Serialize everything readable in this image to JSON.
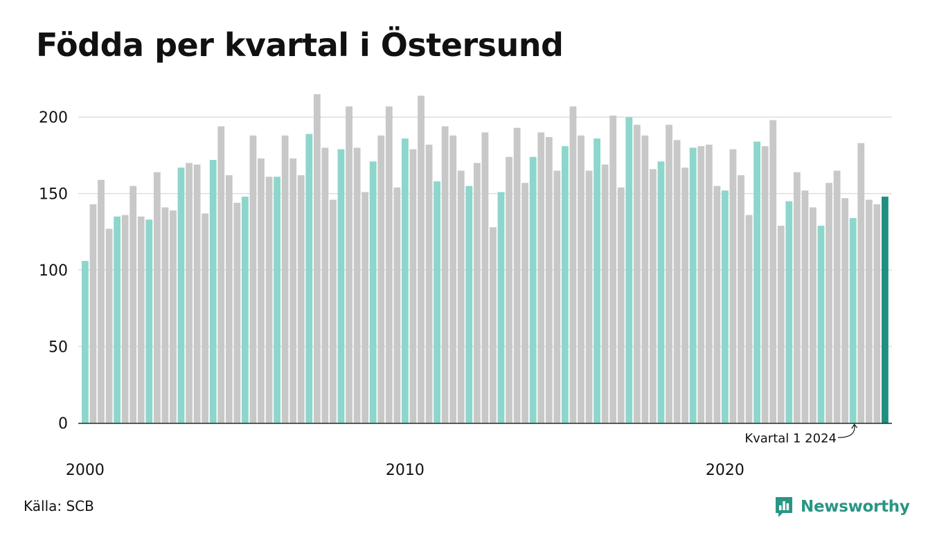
{
  "colors": {
    "q1": "#8dd6cb",
    "other": "#c8c8c8",
    "highlight": "#1f8f7f",
    "grid": "#dedede",
    "axis": "#222222",
    "brand": "#2a9585"
  },
  "source": "Källa: SCB",
  "brand": {
    "name": "Newsworthy",
    "icon": "newsworthy-logo-icon"
  },
  "annotation": {
    "text": "Kvartal 1 2024"
  },
  "chart_data": {
    "type": "bar",
    "title": "Födda per kvartal i Östersund",
    "xlabel": "",
    "ylabel": "",
    "ylim": [
      0,
      220
    ],
    "yticks": [
      0,
      50,
      100,
      150,
      200
    ],
    "xtick_labels": [
      "2000",
      "2010",
      "2020"
    ],
    "grid": true,
    "start": {
      "year": 2000,
      "quarter": 1
    },
    "end": {
      "year": 2024,
      "quarter": 1
    },
    "series": [
      {
        "values": [
          106,
          143,
          159,
          127,
          135,
          136,
          155,
          135,
          133,
          164,
          141,
          139,
          167,
          170,
          169,
          137,
          172,
          194,
          162,
          144,
          148,
          188,
          173,
          161,
          161,
          188,
          173,
          162,
          189,
          215,
          180,
          146,
          179,
          207,
          180,
          151,
          171,
          188,
          207,
          154,
          186,
          179,
          214,
          182,
          158,
          194,
          188,
          165,
          155,
          170,
          190,
          128,
          151,
          174,
          193,
          157,
          174,
          190,
          187,
          165,
          181,
          207,
          188,
          165,
          186,
          169,
          201,
          154,
          200,
          195,
          188,
          166,
          171,
          195,
          185,
          167,
          180,
          181,
          182,
          155,
          152,
          179,
          162,
          136,
          184,
          181,
          198,
          129,
          145,
          164,
          152,
          141,
          129,
          157,
          165,
          147,
          134,
          183,
          146,
          143,
          148
        ]
      }
    ]
  }
}
